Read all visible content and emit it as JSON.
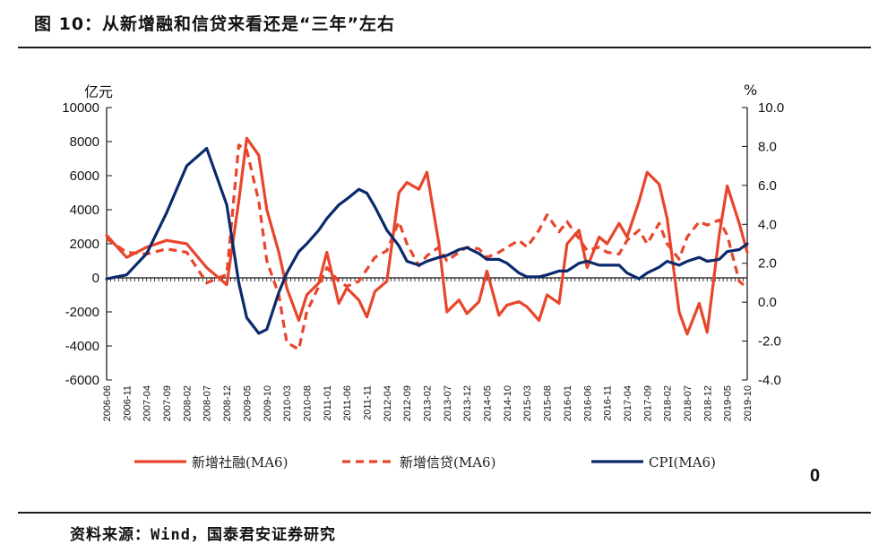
{
  "figure": {
    "title": "图 10：从新增融和信贷来看还是“三年”左右",
    "source": "资料来源：Wind，国泰君安证券研究",
    "stray_label": "0"
  },
  "chart_data": {
    "type": "line",
    "left_axis": {
      "unit": "亿元",
      "min": -6000,
      "max": 10000,
      "ticks": [
        "10000",
        "8000",
        "6000",
        "4000",
        "2000",
        "0",
        "-2000",
        "-4000",
        "-6000"
      ],
      "tick_values": [
        10000,
        8000,
        6000,
        4000,
        2000,
        0,
        -2000,
        -4000,
        -6000
      ]
    },
    "right_axis": {
      "unit": "%",
      "min": -4.0,
      "max": 10.0,
      "ticks": [
        "10.0",
        "8.0",
        "6.0",
        "4.0",
        "2.0",
        "0.0",
        "-2.0",
        "-4.0"
      ],
      "tick_values": [
        10,
        8,
        6,
        4,
        2,
        0,
        -2,
        -4
      ]
    },
    "x_labels": [
      "2006-06",
      "2006-11",
      "2007-04",
      "2007-09",
      "2008-02",
      "2008-07",
      "2008-12",
      "2009-05",
      "2009-10",
      "2010-03",
      "2010-08",
      "2011-01",
      "2011-06",
      "2011-11",
      "2012-04",
      "2012-09",
      "2013-02",
      "2013-07",
      "2013-12",
      "2014-05",
      "2014-10",
      "2015-03",
      "2015-08",
      "2016-01",
      "2016-06",
      "2016-11",
      "2017-04",
      "2017-09",
      "2018-02",
      "2018-07",
      "2018-12",
      "2019-05",
      "2019-10"
    ],
    "grid": false,
    "legend_position": "bottom",
    "colors": {
      "social_financing": "#E8452C",
      "new_loans": "#E8452C",
      "cpi": "#0B2A6B"
    },
    "series": [
      {
        "name": "新增社融(MA6)",
        "axis": "left",
        "style": "solid",
        "x": [
          "2006-06",
          "2006-11",
          "2007-04",
          "2007-09",
          "2008-02",
          "2008-07",
          "2008-12",
          "2009-03",
          "2009-05",
          "2009-08",
          "2009-10",
          "2010-01",
          "2010-03",
          "2010-06",
          "2010-08",
          "2010-11",
          "2011-01",
          "2011-04",
          "2011-06",
          "2011-09",
          "2011-11",
          "2012-01",
          "2012-04",
          "2012-07",
          "2012-09",
          "2012-12",
          "2013-02",
          "2013-05",
          "2013-07",
          "2013-10",
          "2013-12",
          "2014-03",
          "2014-05",
          "2014-08",
          "2014-10",
          "2015-01",
          "2015-03",
          "2015-06",
          "2015-08",
          "2015-11",
          "2016-01",
          "2016-04",
          "2016-06",
          "2016-09",
          "2016-11",
          "2017-02",
          "2017-04",
          "2017-07",
          "2017-09",
          "2017-12",
          "2018-02",
          "2018-05",
          "2018-07",
          "2018-10",
          "2018-12",
          "2019-03",
          "2019-05",
          "2019-08",
          "2019-10"
        ],
        "values": [
          2500,
          1200,
          1800,
          2200,
          2000,
          600,
          -400,
          4500,
          8200,
          7200,
          4000,
          1500,
          -600,
          -2500,
          -1000,
          -300,
          1500,
          -1500,
          -600,
          -1300,
          -2300,
          -800,
          -200,
          5000,
          5600,
          5200,
          6200,
          2000,
          -2000,
          -1300,
          -2100,
          -1400,
          400,
          -2200,
          -1600,
          -1400,
          -1700,
          -2500,
          -1000,
          -1500,
          2000,
          2800,
          600,
          2400,
          2000,
          3200,
          2400,
          4500,
          6200,
          5500,
          3500,
          -2000,
          -3300,
          -1500,
          -3200,
          2500,
          5400,
          3200,
          1500
        ]
      },
      {
        "name": "新增信贷(MA6)",
        "axis": "left",
        "style": "dashed",
        "x": [
          "2006-06",
          "2006-11",
          "2007-04",
          "2007-09",
          "2008-02",
          "2008-07",
          "2008-12",
          "2009-03",
          "2009-05",
          "2009-08",
          "2009-10",
          "2010-01",
          "2010-03",
          "2010-06",
          "2010-08",
          "2010-11",
          "2011-01",
          "2011-04",
          "2011-06",
          "2011-09",
          "2011-11",
          "2012-01",
          "2012-04",
          "2012-07",
          "2012-09",
          "2012-12",
          "2013-02",
          "2013-05",
          "2013-07",
          "2013-10",
          "2013-12",
          "2014-03",
          "2014-05",
          "2014-08",
          "2014-10",
          "2015-01",
          "2015-03",
          "2015-06",
          "2015-08",
          "2015-11",
          "2016-01",
          "2016-04",
          "2016-06",
          "2016-09",
          "2016-11",
          "2017-02",
          "2017-04",
          "2017-07",
          "2017-09",
          "2017-12",
          "2018-02",
          "2018-05",
          "2018-07",
          "2018-10",
          "2018-12",
          "2019-03",
          "2019-05",
          "2019-08",
          "2019-10"
        ],
        "values": [
          2300,
          1500,
          1400,
          1700,
          1500,
          -300,
          200,
          7800,
          7500,
          4500,
          1000,
          -1000,
          -3800,
          -4200,
          -2000,
          -500,
          600,
          -200,
          -500,
          -200,
          500,
          1200,
          1600,
          3300,
          2000,
          700,
          1300,
          1800,
          1000,
          1500,
          1800,
          1700,
          1200,
          1500,
          1800,
          2200,
          1800,
          2800,
          3700,
          2700,
          3300,
          2300,
          1600,
          1800,
          1500,
          1400,
          2200,
          2800,
          2000,
          3200,
          2000,
          1100,
          2400,
          3300,
          3100,
          3400,
          2500,
          -200,
          -600
        ]
      },
      {
        "name": "CPI(MA6)",
        "axis": "right",
        "style": "solid",
        "x": [
          "2006-06",
          "2006-11",
          "2007-04",
          "2007-09",
          "2008-02",
          "2008-07",
          "2008-12",
          "2009-03",
          "2009-05",
          "2009-08",
          "2009-10",
          "2010-01",
          "2010-03",
          "2010-06",
          "2010-08",
          "2010-11",
          "2011-01",
          "2011-04",
          "2011-06",
          "2011-09",
          "2011-11",
          "2012-01",
          "2012-04",
          "2012-07",
          "2012-09",
          "2012-12",
          "2013-02",
          "2013-05",
          "2013-07",
          "2013-10",
          "2013-12",
          "2014-03",
          "2014-05",
          "2014-08",
          "2014-10",
          "2015-01",
          "2015-03",
          "2015-06",
          "2015-08",
          "2015-11",
          "2016-01",
          "2016-04",
          "2016-06",
          "2016-09",
          "2016-11",
          "2017-02",
          "2017-04",
          "2017-07",
          "2017-09",
          "2017-12",
          "2018-02",
          "2018-05",
          "2018-07",
          "2018-10",
          "2018-12",
          "2019-03",
          "2019-05",
          "2019-08",
          "2019-10"
        ],
        "values": [
          1.2,
          1.4,
          2.5,
          4.6,
          7.0,
          7.9,
          5.0,
          1.0,
          -0.8,
          -1.6,
          -1.4,
          0.5,
          1.5,
          2.6,
          3.0,
          3.7,
          4.3,
          5.0,
          5.3,
          5.8,
          5.6,
          4.9,
          3.7,
          2.9,
          2.1,
          1.9,
          2.1,
          2.3,
          2.4,
          2.7,
          2.8,
          2.5,
          2.2,
          2.2,
          2.0,
          1.5,
          1.3,
          1.3,
          1.4,
          1.6,
          1.6,
          2.0,
          2.1,
          1.9,
          1.9,
          1.9,
          1.5,
          1.2,
          1.5,
          1.8,
          2.1,
          1.9,
          2.1,
          2.3,
          2.1,
          2.2,
          2.6,
          2.7,
          3.0
        ]
      }
    ]
  }
}
